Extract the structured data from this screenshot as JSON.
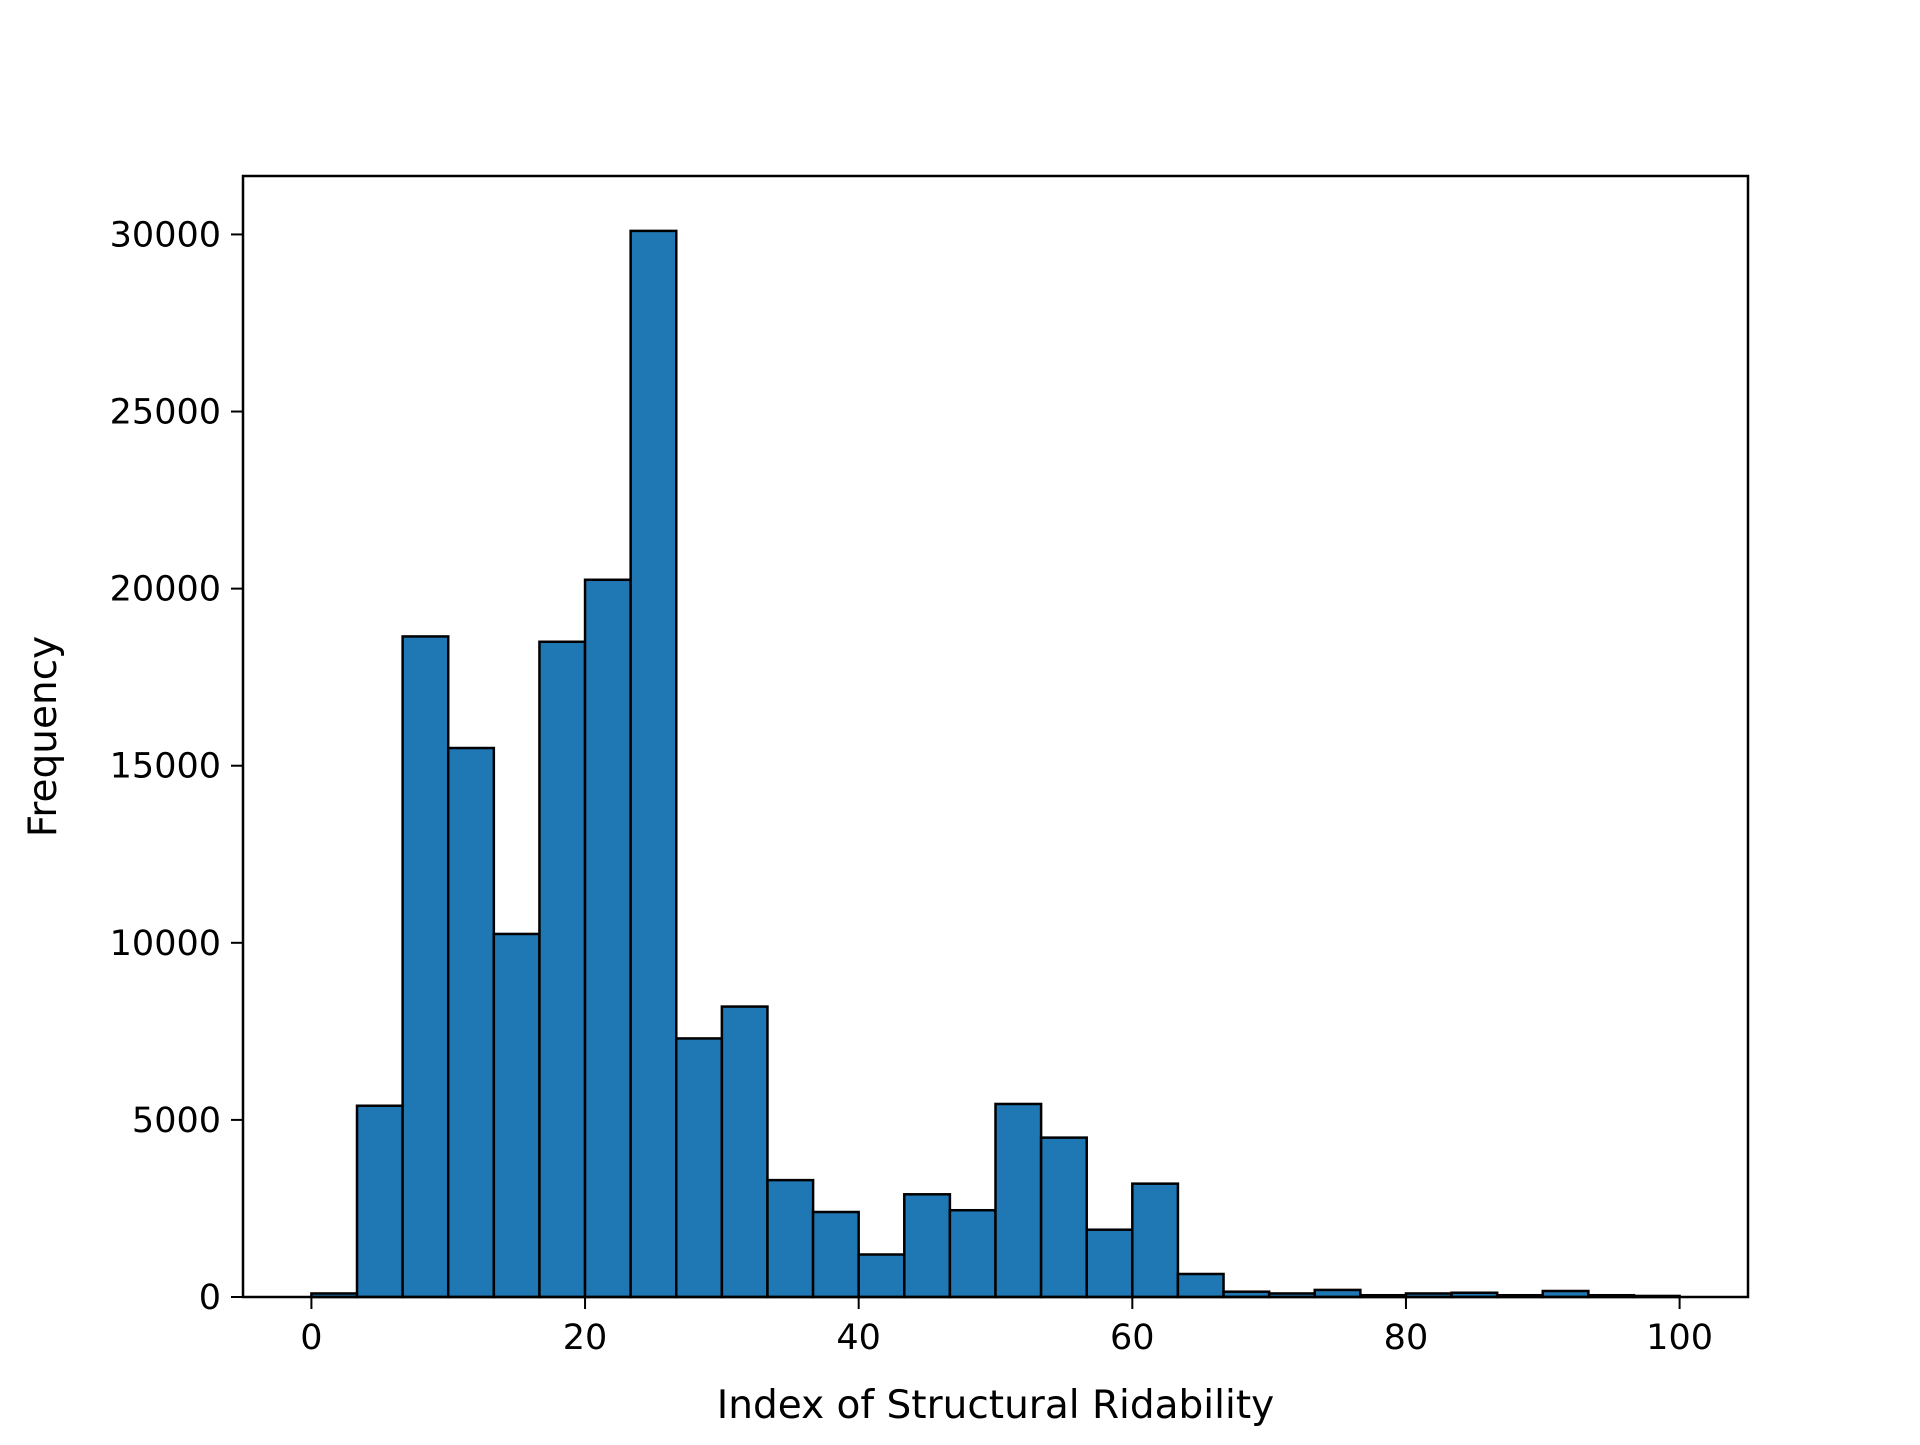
{
  "chart_data": {
    "type": "bar",
    "title": "",
    "xlabel": "Index of Structural Ridability",
    "ylabel": "Frequency",
    "bins": {
      "edges": [
        0.0,
        3.333,
        6.667,
        10.0,
        13.333,
        16.667,
        20.0,
        23.333,
        26.667,
        30.0,
        33.333,
        36.667,
        40.0,
        43.333,
        46.667,
        50.0,
        53.333,
        56.667,
        60.0,
        63.333,
        66.667,
        70.0,
        73.333,
        76.667,
        80.0,
        83.333,
        86.667,
        90.0,
        93.333,
        96.667,
        100.0
      ],
      "values": [
        100,
        5400,
        18650,
        15500,
        10250,
        18500,
        20250,
        30100,
        7300,
        8200,
        3300,
        2400,
        1200,
        2900,
        2450,
        5450,
        4500,
        1900,
        3200,
        650,
        150,
        100,
        200,
        50,
        100,
        120,
        50,
        170,
        50,
        30
      ]
    },
    "xlim": [
      -5,
      105
    ],
    "ylim": [
      0,
      31650
    ],
    "xticks": [
      "0",
      "20",
      "40",
      "60",
      "80",
      "100"
    ],
    "xtick_values": [
      0,
      20,
      40,
      60,
      80,
      100
    ],
    "yticks": [
      "0",
      "5000",
      "10000",
      "15000",
      "20000",
      "25000",
      "30000"
    ],
    "ytick_values": [
      0,
      5000,
      10000,
      15000,
      20000,
      25000,
      30000
    ],
    "grid": false,
    "colors": {
      "bar": "#1f77b4",
      "edge": "#000000"
    }
  }
}
